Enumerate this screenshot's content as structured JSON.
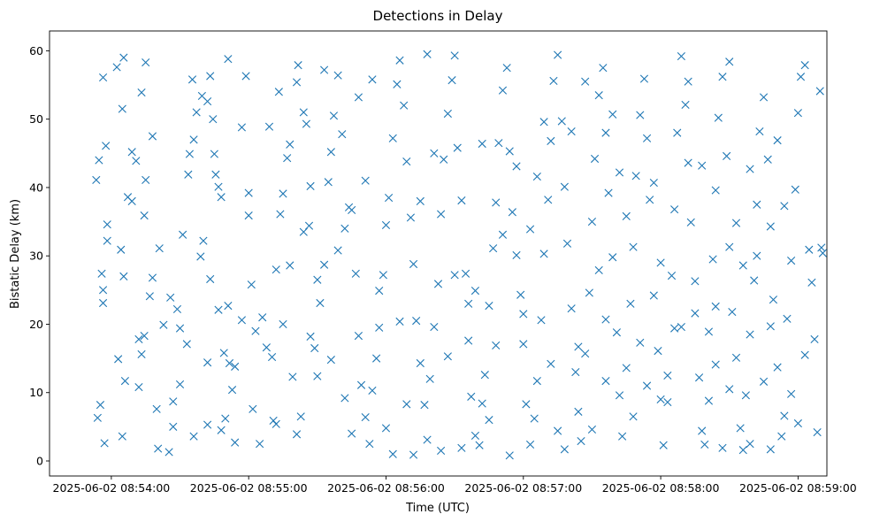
{
  "chart_data": {
    "type": "scatter",
    "title": "Detections in Delay",
    "xlabel": "Time (UTC)",
    "ylabel": "Bistatic Delay (km)",
    "marker": "x",
    "color": "#1f77b4",
    "grid": false,
    "legend": "none",
    "x_unit": "minutes after 2025-06-02 08:54:00 UTC",
    "xlim": [
      -0.45,
      5.21
    ],
    "ylim": [
      -2.2,
      62.9
    ],
    "x_ticks": [
      {
        "value": 0,
        "label": "2025-06-02 08:54:00"
      },
      {
        "value": 1,
        "label": "2025-06-02 08:55:00"
      },
      {
        "value": 2,
        "label": "2025-06-02 08:56:00"
      },
      {
        "value": 3,
        "label": "2025-06-02 08:57:00"
      },
      {
        "value": 4,
        "label": "2025-06-02 08:58:00"
      },
      {
        "value": 5,
        "label": "2025-06-02 08:59:00"
      }
    ],
    "y_ticks": [
      0,
      10,
      20,
      30,
      40,
      50,
      60
    ],
    "points": [
      [
        -0.06,
        56.1
      ],
      [
        -0.04,
        46.1
      ],
      [
        -0.03,
        34.6
      ],
      [
        -0.09,
        44.0
      ],
      [
        -0.11,
        41.1
      ],
      [
        -0.07,
        27.4
      ],
      [
        -0.06,
        25.0
      ],
      [
        -0.06,
        23.1
      ],
      [
        -0.08,
        8.2
      ],
      [
        -0.1,
        6.3
      ],
      [
        -0.05,
        2.6
      ],
      [
        -0.03,
        32.2
      ],
      [
        0.04,
        57.6
      ],
      [
        0.09,
        59.0
      ],
      [
        0.12,
        38.6
      ],
      [
        0.08,
        51.5
      ],
      [
        0.15,
        45.2
      ],
      [
        0.07,
        30.9
      ],
      [
        0.09,
        27.0
      ],
      [
        0.1,
        11.7
      ],
      [
        0.05,
        14.9
      ],
      [
        0.08,
        3.6
      ],
      [
        0.18,
        43.9
      ],
      [
        0.22,
        53.9
      ],
      [
        0.25,
        58.3
      ],
      [
        0.25,
        41.1
      ],
      [
        0.24,
        35.9
      ],
      [
        0.28,
        24.1
      ],
      [
        0.3,
        26.8
      ],
      [
        0.2,
        17.8
      ],
      [
        0.24,
        18.3
      ],
      [
        0.22,
        15.6
      ],
      [
        0.2,
        10.8
      ],
      [
        0.33,
        7.6
      ],
      [
        0.34,
        1.8
      ],
      [
        0.42,
        1.3
      ],
      [
        0.45,
        5.0
      ],
      [
        0.38,
        19.9
      ],
      [
        0.43,
        23.9
      ],
      [
        0.48,
        22.2
      ],
      [
        0.5,
        19.4
      ],
      [
        0.52,
        33.1
      ],
      [
        0.56,
        41.9
      ],
      [
        0.57,
        44.9
      ],
      [
        0.6,
        47.0
      ],
      [
        0.62,
        51.0
      ],
      [
        0.59,
        55.8
      ],
      [
        0.66,
        53.4
      ],
      [
        0.7,
        52.6
      ],
      [
        0.72,
        56.3
      ],
      [
        0.74,
        50.0
      ],
      [
        0.76,
        41.9
      ],
      [
        0.78,
        40.1
      ],
      [
        0.8,
        38.6
      ],
      [
        0.67,
        32.2
      ],
      [
        0.72,
        26.6
      ],
      [
        0.78,
        22.1
      ],
      [
        0.85,
        22.7
      ],
      [
        0.82,
        15.8
      ],
      [
        0.86,
        14.3
      ],
      [
        0.83,
        6.2
      ],
      [
        0.9,
        2.7
      ],
      [
        0.8,
        4.5
      ],
      [
        0.88,
        10.4
      ],
      [
        0.95,
        48.8
      ],
      [
        0.98,
        56.3
      ],
      [
        1.0,
        35.9
      ],
      [
        1.0,
        39.2
      ],
      [
        1.02,
        25.8
      ],
      [
        1.03,
        7.6
      ],
      [
        1.08,
        2.5
      ],
      [
        1.13,
        16.6
      ],
      [
        1.17,
        15.2
      ],
      [
        1.18,
        5.9
      ],
      [
        1.2,
        28.0
      ],
      [
        1.23,
        36.1
      ],
      [
        1.25,
        39.1
      ],
      [
        1.28,
        44.3
      ],
      [
        1.3,
        46.3
      ],
      [
        1.35,
        55.4
      ],
      [
        1.36,
        57.9
      ],
      [
        1.4,
        51.0
      ],
      [
        1.42,
        49.3
      ],
      [
        1.45,
        40.2
      ],
      [
        1.44,
        34.4
      ],
      [
        1.4,
        33.5
      ],
      [
        1.38,
        6.5
      ],
      [
        1.48,
        16.5
      ],
      [
        1.5,
        12.4
      ],
      [
        1.52,
        23.1
      ],
      [
        1.55,
        28.7
      ],
      [
        1.58,
        40.8
      ],
      [
        1.6,
        45.2
      ],
      [
        1.62,
        50.5
      ],
      [
        1.65,
        56.4
      ],
      [
        1.68,
        47.8
      ],
      [
        1.7,
        34.0
      ],
      [
        1.73,
        37.1
      ],
      [
        1.75,
        36.7
      ],
      [
        1.78,
        27.4
      ],
      [
        1.8,
        18.3
      ],
      [
        1.82,
        11.1
      ],
      [
        1.85,
        6.4
      ],
      [
        1.88,
        2.5
      ],
      [
        1.9,
        10.3
      ],
      [
        1.93,
        15.0
      ],
      [
        1.95,
        19.5
      ],
      [
        1.98,
        27.2
      ],
      [
        2.0,
        34.5
      ],
      [
        2.02,
        38.5
      ],
      [
        2.05,
        47.2
      ],
      [
        2.08,
        55.1
      ],
      [
        2.1,
        58.6
      ],
      [
        2.13,
        52.0
      ],
      [
        2.15,
        43.8
      ],
      [
        2.18,
        35.6
      ],
      [
        2.2,
        28.8
      ],
      [
        2.22,
        20.5
      ],
      [
        2.25,
        14.3
      ],
      [
        2.28,
        8.2
      ],
      [
        2.3,
        3.1
      ],
      [
        2.05,
        1.0
      ],
      [
        2.0,
        4.8
      ],
      [
        2.32,
        12.0
      ],
      [
        2.35,
        19.6
      ],
      [
        2.38,
        25.9
      ],
      [
        2.4,
        36.1
      ],
      [
        2.42,
        44.1
      ],
      [
        2.45,
        50.8
      ],
      [
        2.48,
        55.7
      ],
      [
        2.5,
        59.3
      ],
      [
        2.52,
        45.8
      ],
      [
        2.55,
        38.1
      ],
      [
        2.58,
        27.4
      ],
      [
        2.6,
        17.6
      ],
      [
        2.62,
        9.4
      ],
      [
        2.65,
        3.7
      ],
      [
        2.68,
        2.3
      ],
      [
        2.7,
        8.4
      ],
      [
        2.72,
        12.6
      ],
      [
        2.75,
        22.7
      ],
      [
        2.78,
        31.1
      ],
      [
        2.8,
        37.8
      ],
      [
        2.82,
        46.5
      ],
      [
        2.85,
        54.2
      ],
      [
        2.88,
        57.5
      ],
      [
        2.9,
        45.3
      ],
      [
        2.92,
        36.4
      ],
      [
        2.95,
        30.1
      ],
      [
        2.98,
        24.3
      ],
      [
        3.0,
        17.1
      ],
      [
        3.02,
        8.3
      ],
      [
        3.05,
        2.4
      ],
      [
        3.08,
        6.2
      ],
      [
        3.1,
        11.7
      ],
      [
        3.13,
        20.6
      ],
      [
        3.15,
        30.3
      ],
      [
        3.18,
        38.2
      ],
      [
        3.2,
        46.8
      ],
      [
        3.22,
        55.6
      ],
      [
        3.25,
        59.4
      ],
      [
        3.28,
        49.7
      ],
      [
        3.3,
        40.1
      ],
      [
        3.32,
        31.8
      ],
      [
        3.35,
        22.3
      ],
      [
        3.38,
        13.0
      ],
      [
        3.4,
        7.2
      ],
      [
        3.42,
        2.9
      ],
      [
        3.45,
        15.7
      ],
      [
        3.48,
        24.6
      ],
      [
        3.5,
        35.0
      ],
      [
        3.52,
        44.2
      ],
      [
        3.55,
        53.5
      ],
      [
        3.58,
        57.5
      ],
      [
        3.6,
        48.0
      ],
      [
        3.62,
        39.2
      ],
      [
        3.65,
        29.8
      ],
      [
        3.68,
        18.8
      ],
      [
        3.7,
        9.6
      ],
      [
        3.72,
        3.6
      ],
      [
        3.75,
        13.6
      ],
      [
        3.78,
        23.0
      ],
      [
        3.8,
        31.3
      ],
      [
        3.82,
        41.7
      ],
      [
        3.85,
        50.6
      ],
      [
        3.88,
        55.9
      ],
      [
        3.9,
        47.2
      ],
      [
        3.92,
        38.2
      ],
      [
        3.95,
        24.2
      ],
      [
        3.98,
        16.1
      ],
      [
        4.0,
        9.0
      ],
      [
        4.02,
        2.3
      ],
      [
        4.05,
        12.5
      ],
      [
        4.08,
        27.1
      ],
      [
        4.1,
        36.8
      ],
      [
        4.12,
        48.0
      ],
      [
        4.15,
        59.2
      ],
      [
        4.18,
        52.1
      ],
      [
        4.2,
        43.6
      ],
      [
        4.22,
        34.9
      ],
      [
        4.25,
        21.6
      ],
      [
        4.28,
        12.2
      ],
      [
        4.3,
        4.4
      ],
      [
        4.32,
        2.4
      ],
      [
        4.35,
        18.9
      ],
      [
        4.38,
        29.5
      ],
      [
        4.4,
        39.6
      ],
      [
        4.42,
        50.2
      ],
      [
        4.45,
        56.2
      ],
      [
        4.48,
        44.6
      ],
      [
        4.5,
        31.3
      ],
      [
        4.52,
        21.8
      ],
      [
        4.55,
        15.1
      ],
      [
        4.58,
        4.8
      ],
      [
        4.6,
        1.6
      ],
      [
        4.62,
        9.6
      ],
      [
        4.65,
        18.5
      ],
      [
        4.68,
        26.4
      ],
      [
        4.7,
        37.5
      ],
      [
        4.72,
        48.2
      ],
      [
        4.75,
        53.2
      ],
      [
        4.78,
        44.1
      ],
      [
        4.8,
        34.3
      ],
      [
        4.82,
        23.6
      ],
      [
        4.85,
        13.7
      ],
      [
        4.88,
        3.6
      ],
      [
        4.9,
        6.6
      ],
      [
        4.92,
        20.8
      ],
      [
        4.95,
        29.3
      ],
      [
        4.98,
        39.7
      ],
      [
        5.0,
        50.9
      ],
      [
        5.02,
        56.2
      ],
      [
        5.05,
        57.9
      ],
      [
        5.08,
        30.9
      ],
      [
        5.1,
        26.1
      ],
      [
        5.12,
        17.8
      ],
      [
        5.14,
        4.2
      ],
      [
        5.16,
        54.1
      ],
      [
        5.17,
        31.2
      ],
      [
        5.18,
        30.4
      ],
      [
        0.55,
        17.1
      ],
      [
        0.6,
        3.6
      ],
      [
        0.7,
        5.3
      ],
      [
        0.9,
        13.8
      ],
      [
        1.1,
        21.0
      ],
      [
        1.2,
        5.4
      ],
      [
        1.25,
        20.0
      ],
      [
        1.3,
        28.6
      ],
      [
        1.32,
        12.3
      ],
      [
        1.6,
        14.8
      ],
      [
        1.7,
        9.2
      ],
      [
        1.75,
        4.0
      ],
      [
        1.9,
        55.8
      ],
      [
        2.2,
        0.9
      ],
      [
        2.35,
        45.0
      ],
      [
        2.4,
        1.5
      ],
      [
        2.55,
        1.9
      ],
      [
        2.6,
        23.0
      ],
      [
        2.75,
        6.0
      ],
      [
        2.9,
        0.8
      ],
      [
        3.0,
        21.5
      ],
      [
        3.05,
        33.9
      ],
      [
        3.2,
        14.2
      ],
      [
        3.3,
        1.7
      ],
      [
        3.5,
        4.6
      ],
      [
        3.55,
        27.9
      ],
      [
        3.6,
        11.7
      ],
      [
        3.7,
        42.2
      ],
      [
        3.8,
        6.5
      ],
      [
        3.9,
        11.0
      ],
      [
        4.05,
        8.6
      ],
      [
        4.1,
        19.4
      ],
      [
        4.25,
        26.3
      ],
      [
        4.35,
        8.8
      ],
      [
        4.4,
        14.1
      ],
      [
        4.45,
        1.9
      ],
      [
        4.5,
        10.5
      ],
      [
        4.55,
        34.8
      ],
      [
        4.65,
        42.7
      ],
      [
        4.7,
        30.0
      ],
      [
        4.8,
        1.7
      ],
      [
        4.85,
        46.9
      ],
      [
        4.95,
        9.8
      ],
      [
        5.0,
        5.5
      ],
      [
        0.15,
        38.0
      ],
      [
        0.3,
        47.5
      ],
      [
        0.35,
        31.1
      ],
      [
        0.45,
        8.7
      ],
      [
        0.5,
        11.2
      ],
      [
        0.65,
        29.9
      ],
      [
        0.7,
        14.4
      ],
      [
        0.75,
        44.9
      ],
      [
        0.85,
        58.8
      ],
      [
        0.95,
        20.6
      ],
      [
        1.05,
        19.0
      ],
      [
        1.15,
        48.9
      ],
      [
        1.22,
        54.0
      ],
      [
        1.35,
        3.9
      ],
      [
        1.45,
        18.2
      ],
      [
        1.5,
        26.5
      ],
      [
        1.55,
        57.2
      ],
      [
        1.65,
        30.8
      ],
      [
        1.8,
        53.2
      ],
      [
        1.85,
        41.0
      ],
      [
        1.95,
        24.9
      ],
      [
        2.1,
        20.4
      ],
      [
        2.15,
        8.3
      ],
      [
        2.25,
        38.0
      ],
      [
        2.3,
        59.5
      ],
      [
        2.45,
        15.3
      ],
      [
        2.5,
        27.2
      ],
      [
        2.65,
        24.9
      ],
      [
        2.7,
        46.4
      ],
      [
        2.8,
        16.9
      ],
      [
        2.85,
        33.1
      ],
      [
        2.95,
        43.1
      ],
      [
        3.1,
        41.6
      ],
      [
        3.15,
        49.6
      ],
      [
        3.25,
        4.4
      ],
      [
        3.35,
        48.2
      ],
      [
        3.4,
        16.7
      ],
      [
        3.45,
        55.5
      ],
      [
        3.6,
        20.7
      ],
      [
        3.65,
        50.7
      ],
      [
        3.75,
        35.8
      ],
      [
        3.85,
        17.3
      ],
      [
        3.95,
        40.7
      ],
      [
        4.0,
        29.0
      ],
      [
        4.15,
        19.6
      ],
      [
        4.2,
        55.5
      ],
      [
        4.3,
        43.2
      ],
      [
        4.4,
        22.6
      ],
      [
        4.5,
        58.4
      ],
      [
        4.6,
        28.6
      ],
      [
        4.65,
        2.5
      ],
      [
        4.75,
        11.6
      ],
      [
        4.8,
        19.7
      ],
      [
        4.9,
        37.3
      ],
      [
        5.05,
        15.5
      ]
    ]
  }
}
